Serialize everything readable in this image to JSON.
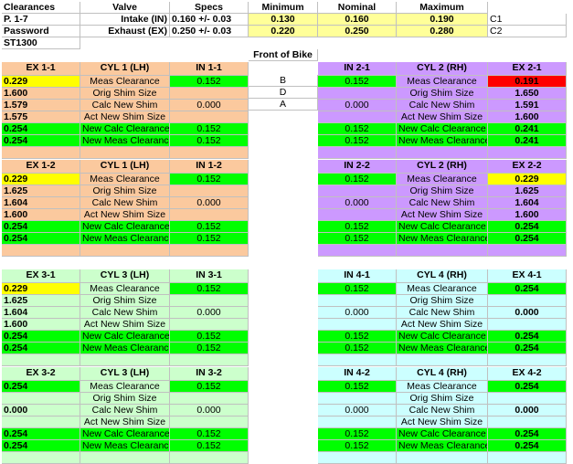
{
  "colors": {
    "orange": "#fbc99e",
    "purple": "#cc99ff",
    "lightgreen": "#ccffcc",
    "lightblue": "#ccffff",
    "yellow": "#ffff99",
    "brightyellow": "#ffff00",
    "green": "#00ff00",
    "red": "#ff0000",
    "white": "#ffffff",
    "grid": "#c0c0c0"
  },
  "header": {
    "title": "Clearances",
    "pages": "P. 1-7",
    "password": "Password",
    "model": "ST1300",
    "col_valve": "Valve",
    "col_specs": "Specs",
    "col_min": "Minimum",
    "col_nom": "Nominal",
    "col_max": "Maximum",
    "intake_label": "Intake (IN)",
    "intake_spec": "0.160 +/- 0.03",
    "intake_min": "0.130",
    "intake_nom": "0.160",
    "intake_max": "0.190",
    "intake_ref": "C1",
    "exhaust_label": "Exhaust (EX)",
    "exhaust_spec": "0.250 +/- 0.03",
    "exhaust_min": "0.220",
    "exhaust_nom": "0.250",
    "exhaust_max": "0.280",
    "exhaust_ref": "C2",
    "front_label": "Front of Bike",
    "mid_letters": [
      "B",
      "D",
      "A"
    ]
  },
  "row_labels": [
    "Meas Clearance",
    "Orig Shim Size",
    "Calc New Shim",
    "Act New Shim Size",
    "New Calc Clearance",
    "New Meas Clearance"
  ],
  "blocks": [
    {
      "side": "left",
      "color": "orange",
      "ex_title": "EX 1-1",
      "cyl_title": "CYL 1 (LH)",
      "in_title": "IN 1-1",
      "ex": [
        "0.229",
        "1.600",
        "1.579",
        "1.575",
        "0.254",
        "0.254"
      ],
      "ex_fill": [
        "brightyellow",
        "",
        "",
        "",
        "green",
        "green"
      ],
      "inn": [
        "0.152",
        "",
        "0.000",
        "",
        "0.152",
        "0.152"
      ],
      "in_fill": [
        "green",
        "",
        "",
        "",
        "green",
        "green"
      ]
    },
    {
      "side": "right",
      "color": "purple",
      "ex_title": "EX 2-1",
      "cyl_title": "CYL 2 (RH)",
      "in_title": "IN 2-1",
      "ex": [
        "0.191",
        "1.650",
        "1.591",
        "1.600",
        "0.241",
        "0.241"
      ],
      "ex_fill": [
        "red",
        "",
        "",
        "",
        "green",
        "green"
      ],
      "inn": [
        "0.152",
        "",
        "0.000",
        "",
        "0.152",
        "0.152"
      ],
      "in_fill": [
        "green",
        "",
        "",
        "",
        "green",
        "green"
      ]
    },
    {
      "side": "left",
      "color": "orange",
      "ex_title": "EX 1-2",
      "cyl_title": "CYL 1 (LH)",
      "in_title": "IN 1-2",
      "ex": [
        "0.229",
        "1.625",
        "1.604",
        "1.600",
        "0.254",
        "0.254"
      ],
      "ex_fill": [
        "brightyellow",
        "",
        "",
        "",
        "green",
        "green"
      ],
      "inn": [
        "0.152",
        "",
        "0.000",
        "",
        "0.152",
        "0.152"
      ],
      "in_fill": [
        "green",
        "",
        "",
        "",
        "green",
        "green"
      ]
    },
    {
      "side": "right",
      "color": "purple",
      "ex_title": "EX 2-2",
      "cyl_title": "CYL 2 (RH)",
      "in_title": "IN 2-2",
      "ex": [
        "0.229",
        "1.625",
        "1.604",
        "1.600",
        "0.254",
        "0.254"
      ],
      "ex_fill": [
        "brightyellow",
        "",
        "",
        "",
        "green",
        "green"
      ],
      "inn": [
        "0.152",
        "",
        "0.000",
        "",
        "0.152",
        "0.152"
      ],
      "in_fill": [
        "green",
        "",
        "",
        "",
        "green",
        "green"
      ]
    },
    {
      "side": "left",
      "color": "lightgreen",
      "ex_title": "EX 3-1",
      "cyl_title": "CYL 3 (LH)",
      "in_title": "IN 3-1",
      "ex": [
        "0.229",
        "1.625",
        "1.604",
        "1.600",
        "0.254",
        "0.254"
      ],
      "ex_fill": [
        "brightyellow",
        "",
        "",
        "",
        "green",
        "green"
      ],
      "inn": [
        "0.152",
        "",
        "0.000",
        "",
        "0.152",
        "0.152"
      ],
      "in_fill": [
        "green",
        "",
        "",
        "",
        "green",
        "green"
      ]
    },
    {
      "side": "right",
      "color": "lightblue",
      "ex_title": "EX 4-1",
      "cyl_title": "CYL 4 (RH)",
      "in_title": "IN 4-1",
      "ex": [
        "0.254",
        "",
        "0.000",
        "",
        "0.254",
        "0.254"
      ],
      "ex_fill": [
        "green",
        "",
        "",
        "",
        "green",
        "green"
      ],
      "inn": [
        "0.152",
        "",
        "0.000",
        "",
        "0.152",
        "0.152"
      ],
      "in_fill": [
        "green",
        "",
        "",
        "",
        "green",
        "green"
      ]
    },
    {
      "side": "left",
      "color": "lightgreen",
      "ex_title": "EX 3-2",
      "cyl_title": "CYL 3 (LH)",
      "in_title": "IN 3-2",
      "ex": [
        "0.254",
        "",
        "0.000",
        "",
        "0.254",
        "0.254"
      ],
      "ex_fill": [
        "green",
        "",
        "",
        "",
        "green",
        "green"
      ],
      "inn": [
        "0.152",
        "",
        "0.000",
        "",
        "0.152",
        "0.152"
      ],
      "in_fill": [
        "green",
        "",
        "",
        "",
        "green",
        "green"
      ]
    },
    {
      "side": "right",
      "color": "lightblue",
      "ex_title": "EX 4-2",
      "cyl_title": "CYL 4 (RH)",
      "in_title": "IN 4-2",
      "ex": [
        "0.254",
        "",
        "0.000",
        "",
        "0.254",
        "0.254"
      ],
      "ex_fill": [
        "green",
        "",
        "",
        "",
        "green",
        "green"
      ],
      "inn": [
        "0.152",
        "",
        "0.000",
        "",
        "0.152",
        "0.152"
      ],
      "in_fill": [
        "green",
        "",
        "",
        "",
        "green",
        "green"
      ]
    }
  ]
}
